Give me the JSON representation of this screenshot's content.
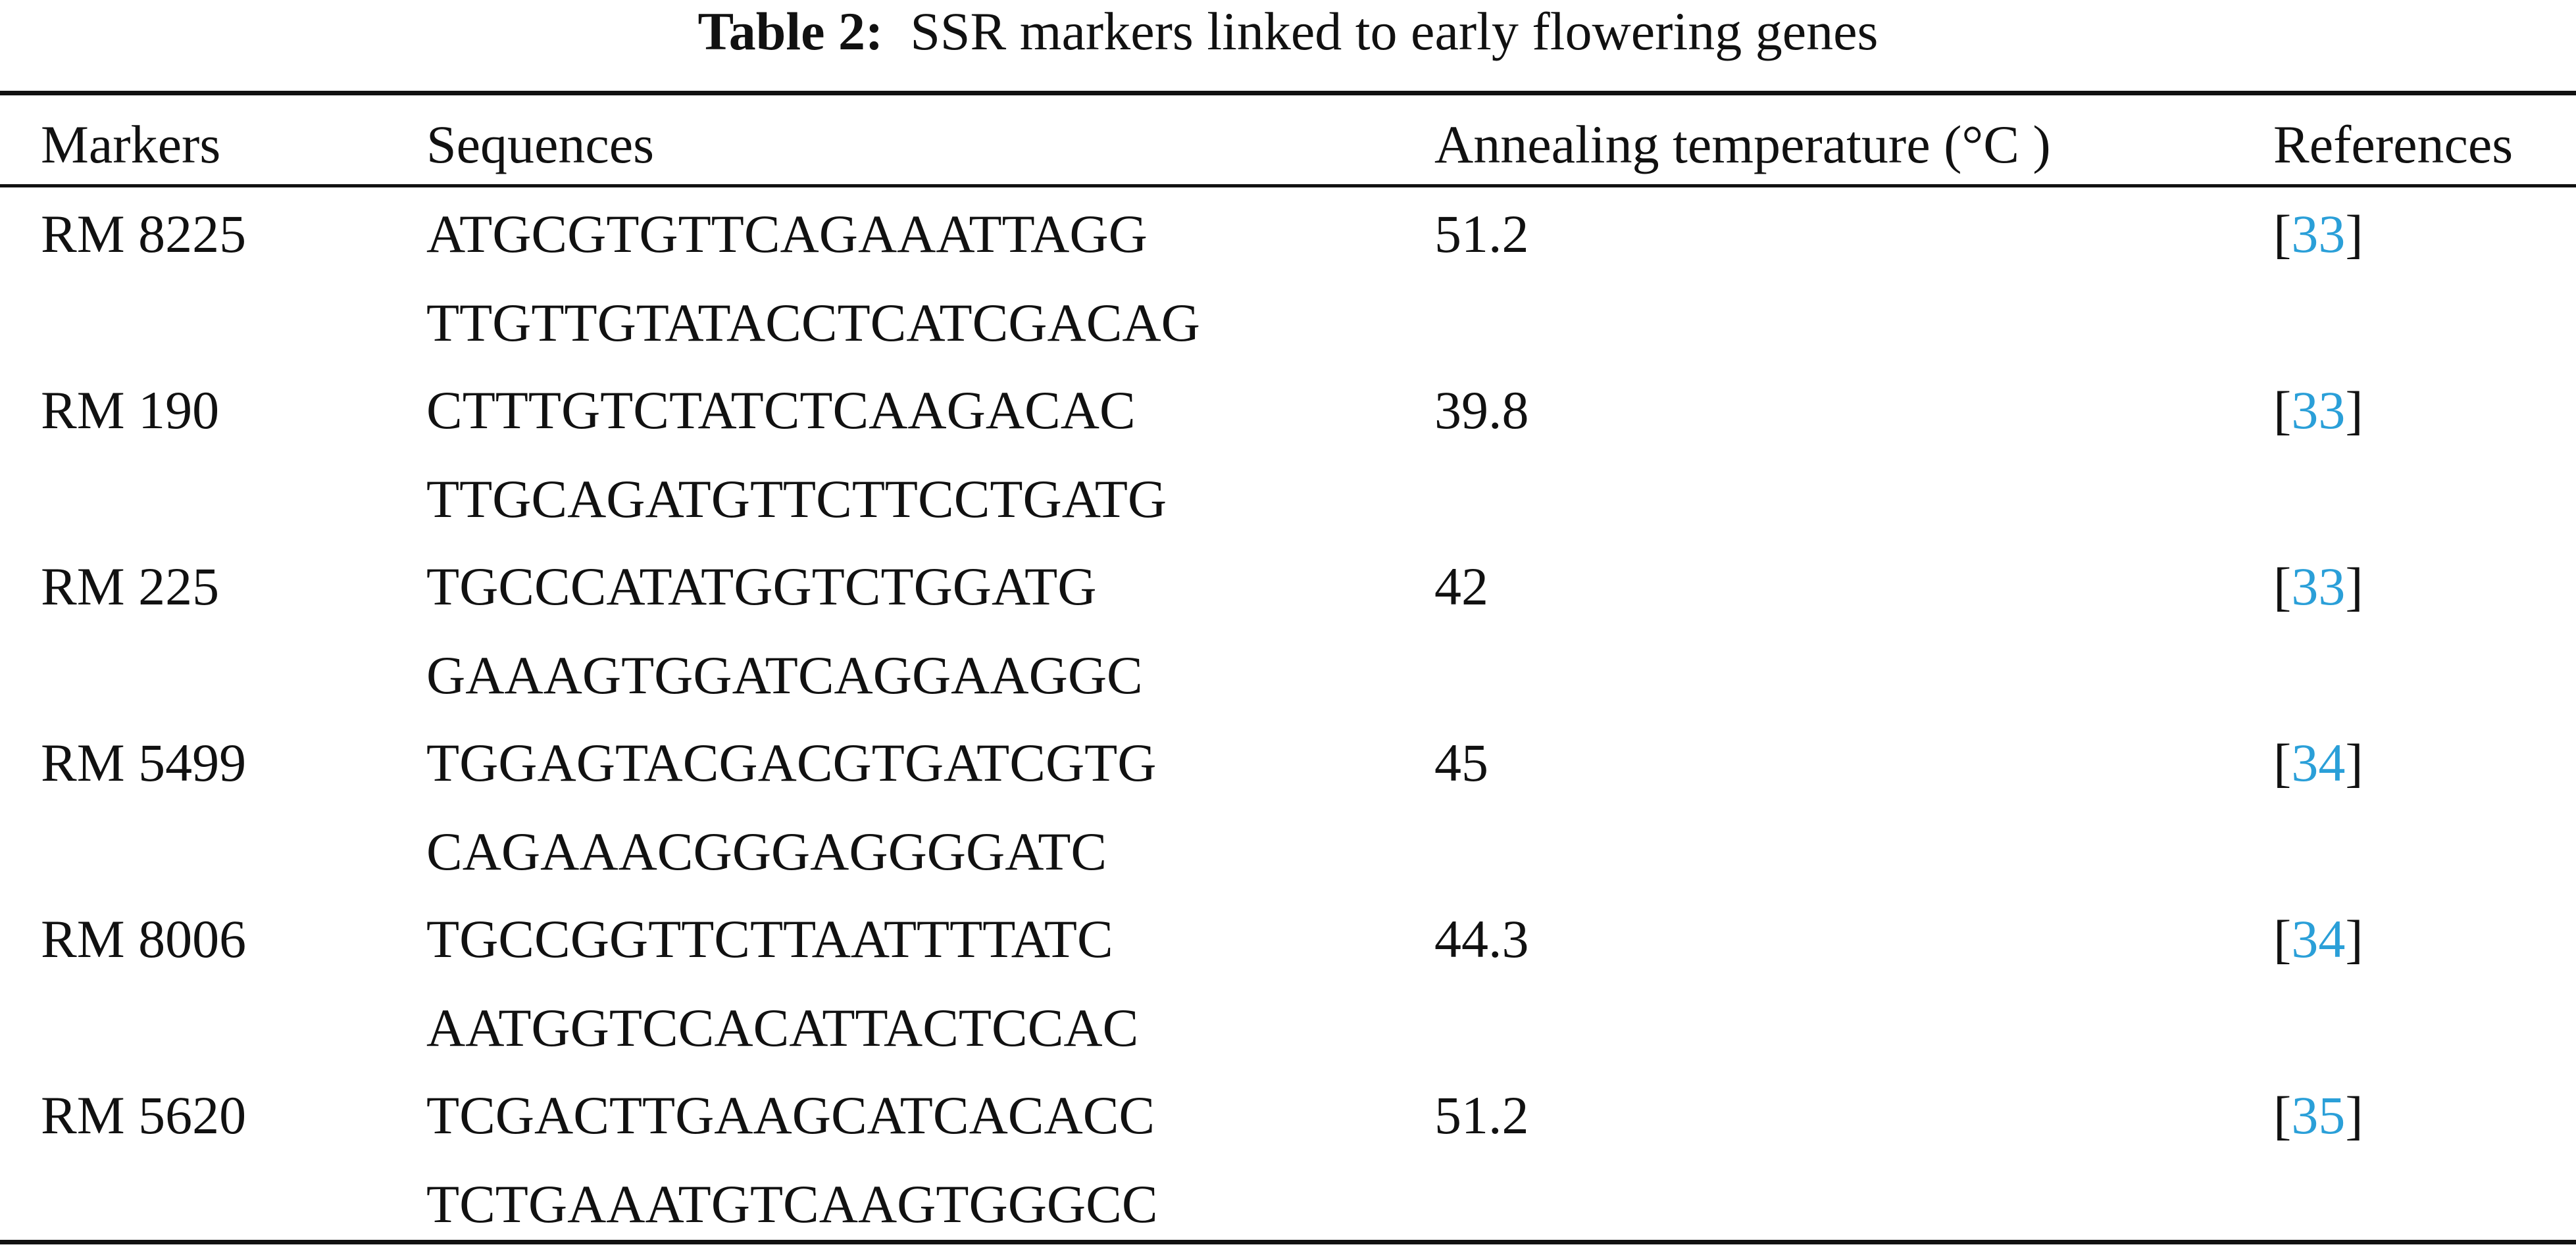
{
  "table": {
    "title_label": "Table 2:",
    "title_text": "SSR markers linked to early flowering genes",
    "headers": {
      "markers": "Markers",
      "sequences": "Sequences",
      "temperature": "Annealing temperature (°C )",
      "references": "References"
    },
    "rows": [
      {
        "marker": "RM 8225",
        "seq_forward": "ATGCGTGTTCAGAAATTAGG",
        "seq_reverse": "TTGTTGTATACCTCATCGACAG",
        "temperature": "51.2",
        "ref": "33"
      },
      {
        "marker": "RM 190",
        "seq_forward": "CTTTGTCTATCTCAAGACAC",
        "seq_reverse": "TTGCAGATGTTCTTCCTGATG",
        "temperature": "39.8",
        "ref": "33"
      },
      {
        "marker": "RM 225",
        "seq_forward": "TGCCCATATGGTCTGGATG",
        "seq_reverse": "GAAAGTGGATCAGGAAGGC",
        "temperature": "42",
        "ref": "33"
      },
      {
        "marker": "RM 5499",
        "seq_forward": "TGGAGTACGACGTGATCGTG",
        "seq_reverse": "CAGAAACGGGAGGGGATC",
        "temperature": "45",
        "ref": "34"
      },
      {
        "marker": "RM 8006",
        "seq_forward": "TGCCGGTTCTTAATTTTATC",
        "seq_reverse": "AATGGTCCACATTACTCCAC",
        "temperature": "44.3",
        "ref": "34"
      },
      {
        "marker": "RM 5620",
        "seq_forward": "TCGACTTGAAGCATCACACC",
        "seq_reverse": "TCTGAAATGTCAAGTGGGCC",
        "temperature": "51.2",
        "ref": "35"
      }
    ],
    "link_color": "#2a9fd8"
  }
}
